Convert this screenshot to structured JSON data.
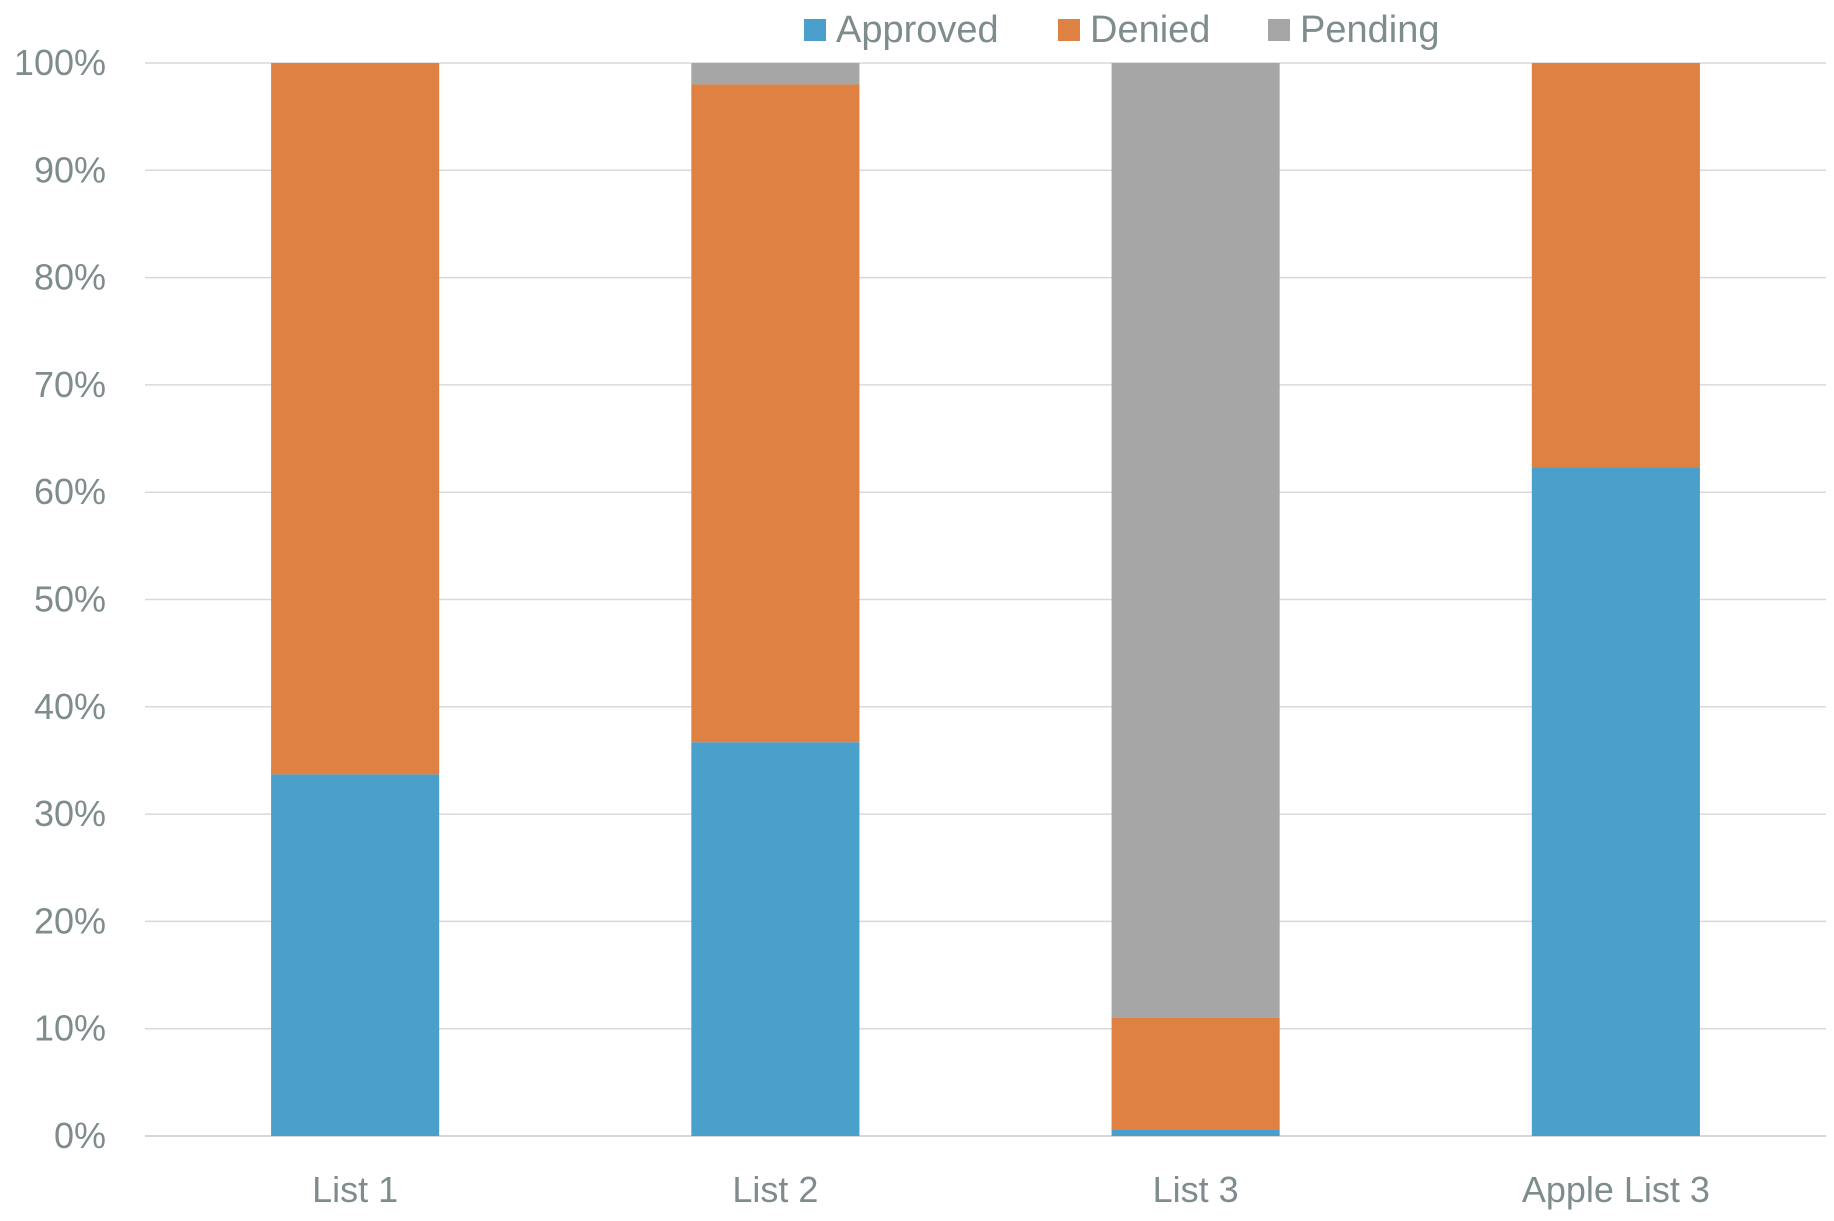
{
  "chart_data": {
    "type": "bar",
    "stacked": "percent",
    "categories": [
      "List 1",
      "List 2",
      "List 3",
      "Apple List 3"
    ],
    "series": [
      {
        "name": "Approved",
        "color": "#4ba0cb",
        "values": [
          33.7,
          36.7,
          0.6,
          62.3
        ]
      },
      {
        "name": "Denied",
        "color": "#e08144",
        "values": [
          66.3,
          61.3,
          10.4,
          37.7
        ]
      },
      {
        "name": "Pending",
        "color": "#a6a6a6",
        "values": [
          0.0,
          2.0,
          89.0,
          0.0
        ]
      }
    ],
    "ylim": [
      0,
      100
    ],
    "yticks": [
      "0%",
      "10%",
      "20%",
      "30%",
      "40%",
      "50%",
      "60%",
      "70%",
      "80%",
      "90%",
      "100%"
    ],
    "grid": true,
    "legend_position": "top-center",
    "title": "",
    "xlabel": "",
    "ylabel": ""
  }
}
